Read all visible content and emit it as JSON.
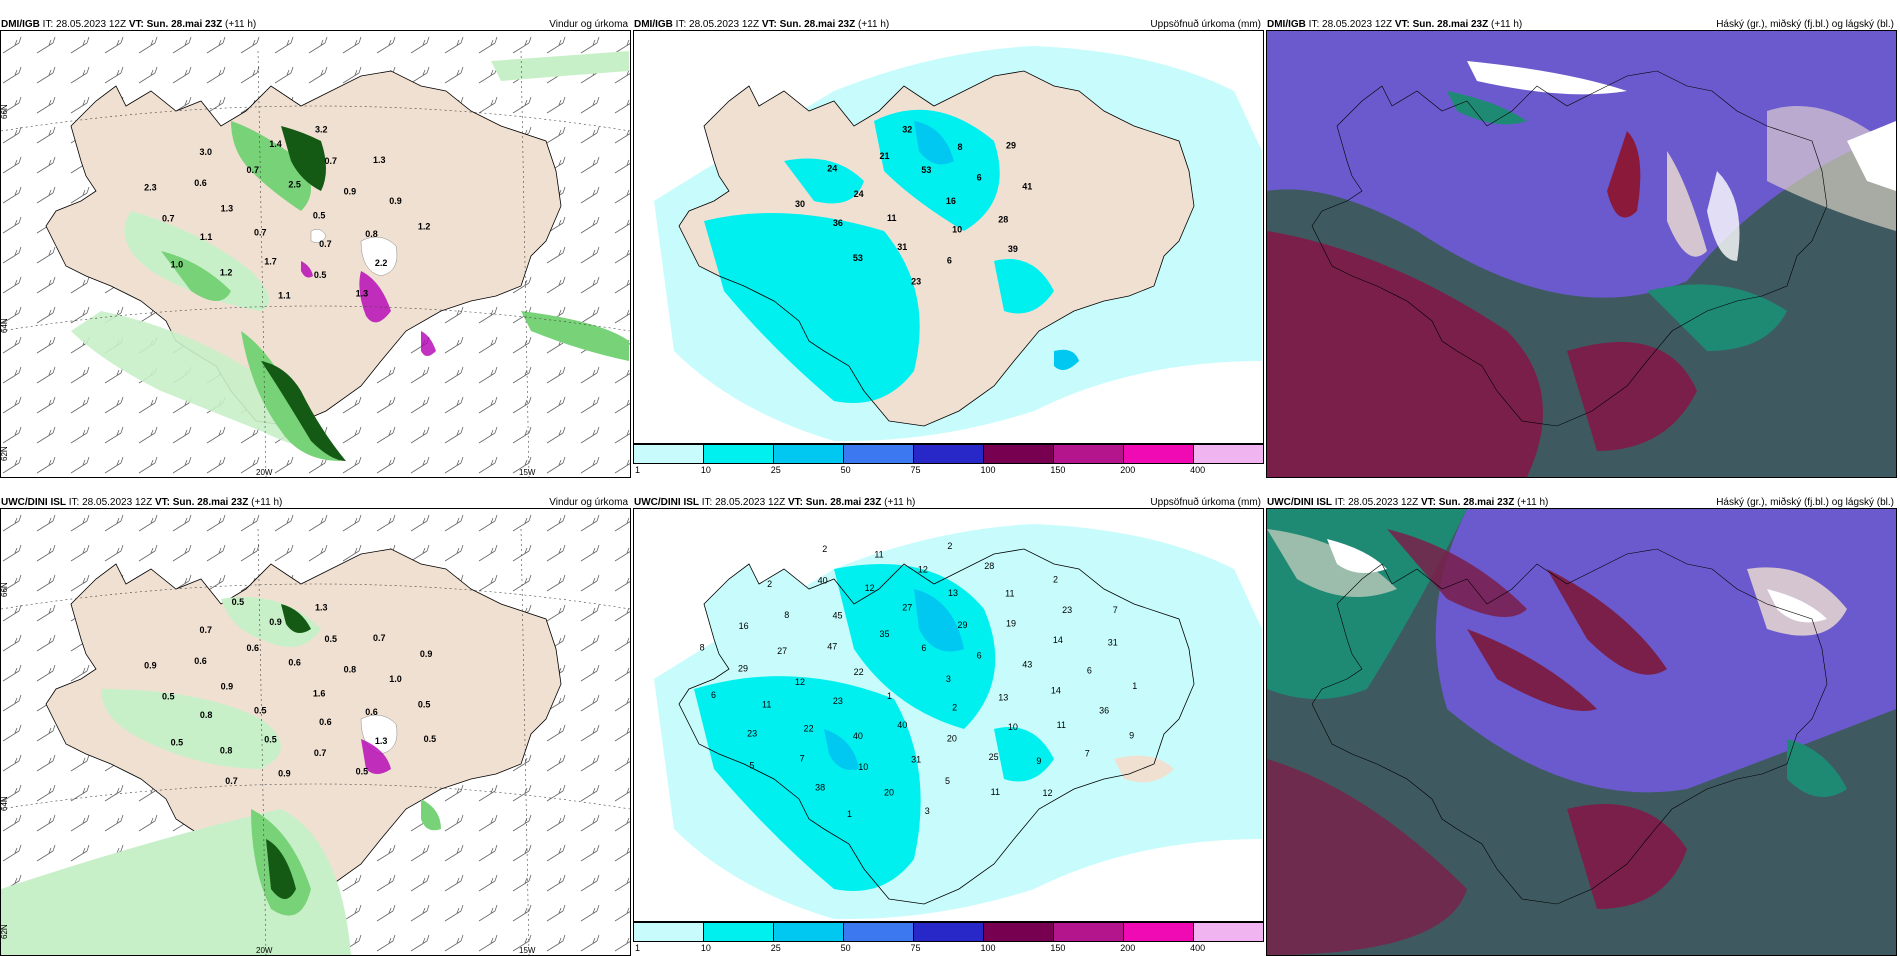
{
  "panels": [
    {
      "source": "DMI/IGB",
      "it": "IT: 28.05.2023 12Z",
      "vt_label": "VT:",
      "vt": "Sun. 28.mai 23Z",
      "lead": "(+11 h)",
      "title": "Vindur og úrkoma"
    },
    {
      "source": "DMI/IGB",
      "it": "IT: 28.05.2023 12Z",
      "vt_label": "VT:",
      "vt": "Sun. 28.mai 23Z",
      "lead": "(+11 h)",
      "title": "Uppsöfnuð úrkoma (mm)"
    },
    {
      "source": "DMI/IGB",
      "it": "IT: 28.05.2023 12Z",
      "vt_label": "VT:",
      "vt": "Sun. 28.mai 23Z",
      "lead": "(+11 h)",
      "title": "Háský (gr.), miðský (fj.bl.) og lágský (bl.)"
    },
    {
      "source": "UWC/DINI ISL",
      "it": "IT: 28.05.2023 12Z",
      "vt_label": "VT:",
      "vt": "Sun. 28.mai 23Z",
      "lead": "(+11 h)",
      "title": "Vindur og úrkoma"
    },
    {
      "source": "UWC/DINI ISL",
      "it": "IT: 28.05.2023 12Z",
      "vt_label": "VT:",
      "vt": "Sun. 28.mai 23Z",
      "lead": "(+11 h)",
      "title": "Uppsöfnuð úrkoma (mm)"
    },
    {
      "source": "UWC/DINI ISL",
      "it": "IT: 28.05.2023 12Z",
      "vt_label": "VT:",
      "vt": "Sun. 28.mai 23Z",
      "lead": "(+11 h)",
      "title": "Háský (gr.), miðský (fj.bl.) og lágský (bl.)"
    }
  ],
  "grid_labels": {
    "lon_20": "20W",
    "lon_15": "15W",
    "lat_66": "66N",
    "lat_64": "64N",
    "lat_62": "62N"
  },
  "colorbar": {
    "labels": [
      "1",
      "10",
      "25",
      "50",
      "75",
      "100",
      "150",
      "200",
      "400"
    ],
    "colors": [
      "#c8fcfc",
      "#00f0f0",
      "#00c8f0",
      "#3c78f0",
      "#2828c8",
      "#780050",
      "#b4148c",
      "#f00ab4",
      "#f0b4f0"
    ]
  },
  "colors": {
    "land": "#f0e0d2",
    "sea": "#ffffff",
    "wind_barb": "#555555",
    "precip_light": "#c8f0c8",
    "precip_mid": "#78d278",
    "precip_heavy": "#145a14",
    "precip_peak": "#b400b4",
    "accum_light": "#c8fcfc",
    "accum_mid": "#00f0f0",
    "accum_heavy": "#00b4e6",
    "cloud_high": "#6a5acd",
    "cloud_mid": "#7a1f4a",
    "cloud_low": "#1f8a74",
    "cloud_mix": "#3e5a60"
  },
  "precip_labels_top": [
    "0.5",
    "0.7",
    "2.5",
    "0.7",
    "1.3",
    "0.9",
    "1.7",
    "0.7",
    "0.8",
    "1.1",
    "0.7",
    "0.5",
    "0.6",
    "0.9",
    "1.2",
    "1.4",
    "2.2",
    "0.7",
    "1.3",
    "1.1",
    "3.0",
    "1.2",
    "1.0",
    "3.2",
    "1.3",
    "2.3"
  ],
  "precip_labels_bottom": [
    "1.6",
    "0.5",
    "0.6",
    "0.6",
    "0.9",
    "0.8",
    "0.5",
    "0.6",
    "0.6",
    "0.8",
    "0.5",
    "0.7",
    "0.6",
    "1.0",
    "0.8",
    "0.9",
    "1.3",
    "0.5",
    "0.7",
    "0.9",
    "0.7",
    "0.5",
    "0.5",
    "1.3",
    "0.5",
    "0.9",
    "0.9",
    "0.7",
    "0.5",
    "0.5"
  ],
  "accum_labels_top": [
    "16",
    "11",
    "53",
    "10",
    "24",
    "6",
    "31",
    "21",
    "28",
    "36",
    "8",
    "6",
    "24",
    "41",
    "53",
    "32",
    "39",
    "30",
    "29",
    "23"
  ],
  "accum_labels_bottom": [
    "3",
    "1",
    "6",
    "2",
    "22",
    "6",
    "40",
    "35",
    "13",
    "23",
    "29",
    "20",
    "47",
    "43",
    "40",
    "27",
    "10",
    "12",
    "19",
    "31",
    "45",
    "14",
    "22",
    "13",
    "25",
    "27",
    "14",
    "10",
    "12",
    "11",
    "11",
    "11",
    "5",
    "8",
    "6",
    "7",
    "12",
    "9",
    "29",
    "23",
    "20",
    "40",
    "36",
    "23",
    "28",
    "11",
    "16",
    "31",
    "38",
    "11",
    "7",
    "6",
    "2",
    "3",
    "2",
    "1",
    "5",
    "2",
    "12",
    "8",
    "7",
    "1",
    "2",
    "9"
  ]
}
